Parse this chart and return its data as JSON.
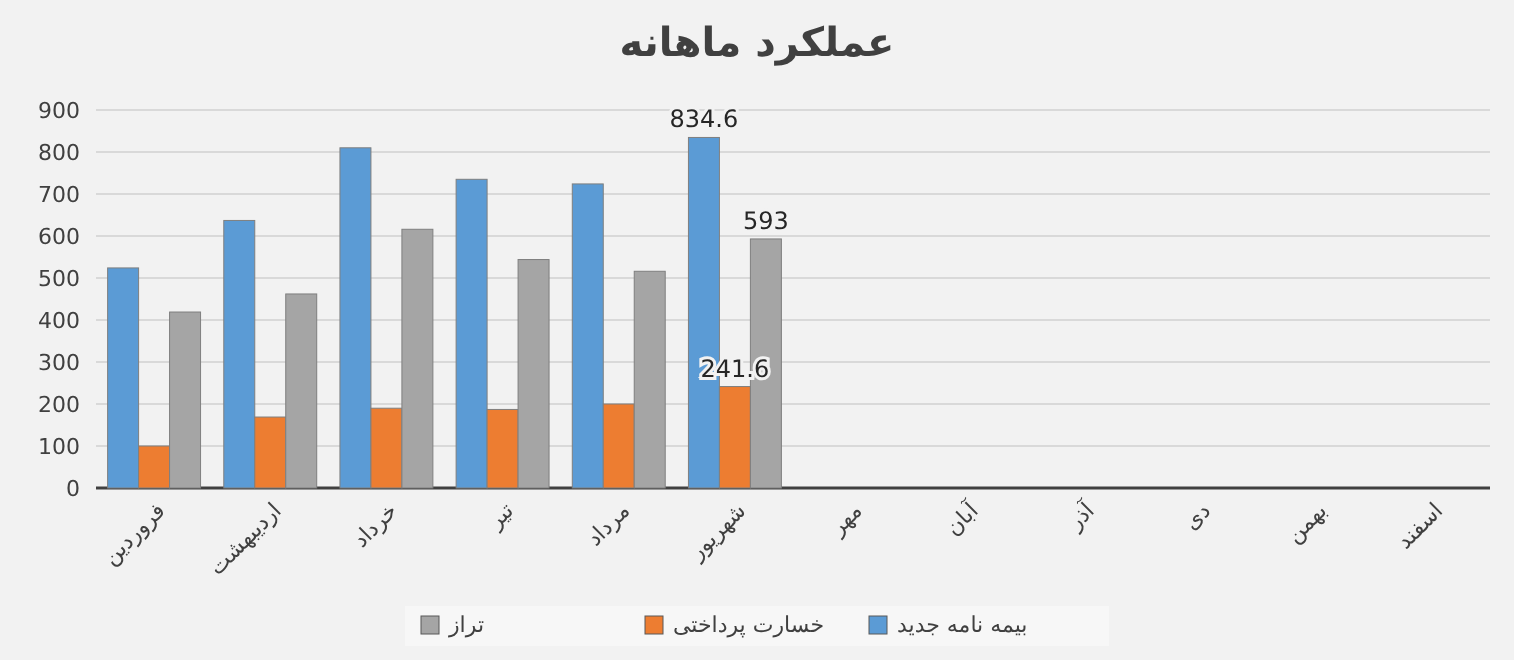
{
  "chart_data": {
    "type": "bar",
    "title": "عملکرد ماهانه",
    "categories": [
      "فروردین",
      "اردیبهشت",
      "خرداد",
      "تیر",
      "مرداد",
      "شهریور",
      "مهر",
      "آبان",
      "آذر",
      "دی",
      "بهمن",
      "اسفند"
    ],
    "series": [
      {
        "name": "بیمه نامه جدید",
        "color": "#5b9bd5",
        "values": [
          524,
          637,
          810,
          735,
          724,
          834.6,
          null,
          null,
          null,
          null,
          null,
          null
        ],
        "value_labels": [
          null,
          null,
          null,
          null,
          null,
          "834.6",
          null,
          null,
          null,
          null,
          null,
          null
        ]
      },
      {
        "name": "خسارت پرداختی",
        "color": "#ed7d31",
        "values": [
          100,
          169,
          190,
          187,
          200,
          241.6,
          null,
          null,
          null,
          null,
          null,
          null
        ],
        "value_labels": [
          null,
          null,
          null,
          null,
          null,
          "241.6",
          null,
          null,
          null,
          null,
          null,
          null
        ]
      },
      {
        "name": "تراز",
        "color": "#a5a5a5",
        "values": [
          419,
          462,
          616,
          544,
          516,
          593,
          null,
          null,
          null,
          null,
          null,
          null
        ],
        "value_labels": [
          null,
          null,
          null,
          null,
          null,
          "593",
          null,
          null,
          null,
          null,
          null,
          null
        ]
      }
    ],
    "ylim": [
      0,
      900
    ],
    "yticks": [
      0,
      100,
      200,
      300,
      400,
      500,
      600,
      700,
      800,
      900
    ],
    "grid": "y",
    "legend": "bottom"
  }
}
